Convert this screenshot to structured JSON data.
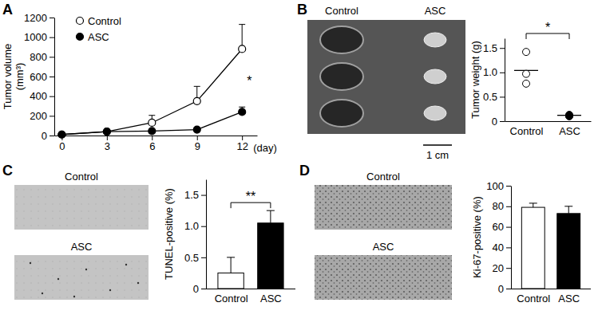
{
  "chart_data": [
    {
      "type": "line",
      "title": "A",
      "x": [
        0,
        3,
        6,
        9,
        12
      ],
      "xlim": [
        -0.5,
        13
      ],
      "xticks": [
        0,
        3,
        6,
        9,
        12
      ],
      "x_label": "(day)",
      "y_label": [
        "Tumor volume",
        "(mm³)"
      ],
      "ylim": [
        0,
        1200
      ],
      "yticks": [
        0,
        200,
        400,
        600,
        800,
        1000,
        1200
      ],
      "series": [
        {
          "name": "Control",
          "color": "#000000",
          "marker": "open-circle",
          "values": [
            10,
            40,
            130,
            350,
            880
          ],
          "errors": [
            0,
            5,
            75,
            150,
            250
          ]
        },
        {
          "name": "ASC",
          "color": "#000000",
          "marker": "filled-circle",
          "values": [
            10,
            40,
            45,
            60,
            240
          ],
          "errors": [
            0,
            5,
            10,
            20,
            50
          ]
        }
      ],
      "legend": "upper-left",
      "annotations": [
        "*"
      ]
    },
    {
      "type": "scatter",
      "title": "B",
      "categories": [
        "Control",
        "ASC"
      ],
      "values": [
        [
          1.42,
          0.97,
          0.77
        ],
        [
          0.13,
          0.11,
          0.1
        ]
      ],
      "means": [
        1.04,
        0.12
      ],
      "colors": [
        "#ffffff",
        "#000000"
      ],
      "y_label": "Tumor weight (g)",
      "ylim": [
        0,
        1.7
      ],
      "yticks": [
        0,
        0.5,
        {
          "value": 1,
          "label": "1.0"
        },
        1.5
      ],
      "annotations": [
        "*"
      ],
      "image_labels": [
        "Control",
        "ASC"
      ],
      "scale_bar": "1 cm"
    },
    {
      "type": "bar",
      "title": "C",
      "categories": [
        "Control",
        "ASC"
      ],
      "values": [
        0.25,
        1.05
      ],
      "errors": [
        0.25,
        0.2
      ],
      "colors": [
        "#ffffff",
        "#000000"
      ],
      "y_label": "TUNEL-positive (%)",
      "ylim": [
        0,
        1.75
      ],
      "yticks": [
        0,
        0.5,
        {
          "value": 1,
          "label": "1.0"
        },
        1.5
      ],
      "annotations": [
        "**"
      ],
      "image_labels": [
        "Control",
        "ASC"
      ]
    },
    {
      "type": "bar",
      "title": "D",
      "categories": [
        "Control",
        "ASC"
      ],
      "values": [
        79,
        73
      ],
      "errors": [
        4,
        7
      ],
      "colors": [
        "#ffffff",
        "#000000"
      ],
      "y_label": "Ki-67-positive (%)",
      "ylim": [
        0,
        100
      ],
      "yticks": [
        0,
        20,
        40,
        60,
        80,
        100
      ],
      "image_labels": [
        "Control",
        "ASC"
      ]
    }
  ]
}
